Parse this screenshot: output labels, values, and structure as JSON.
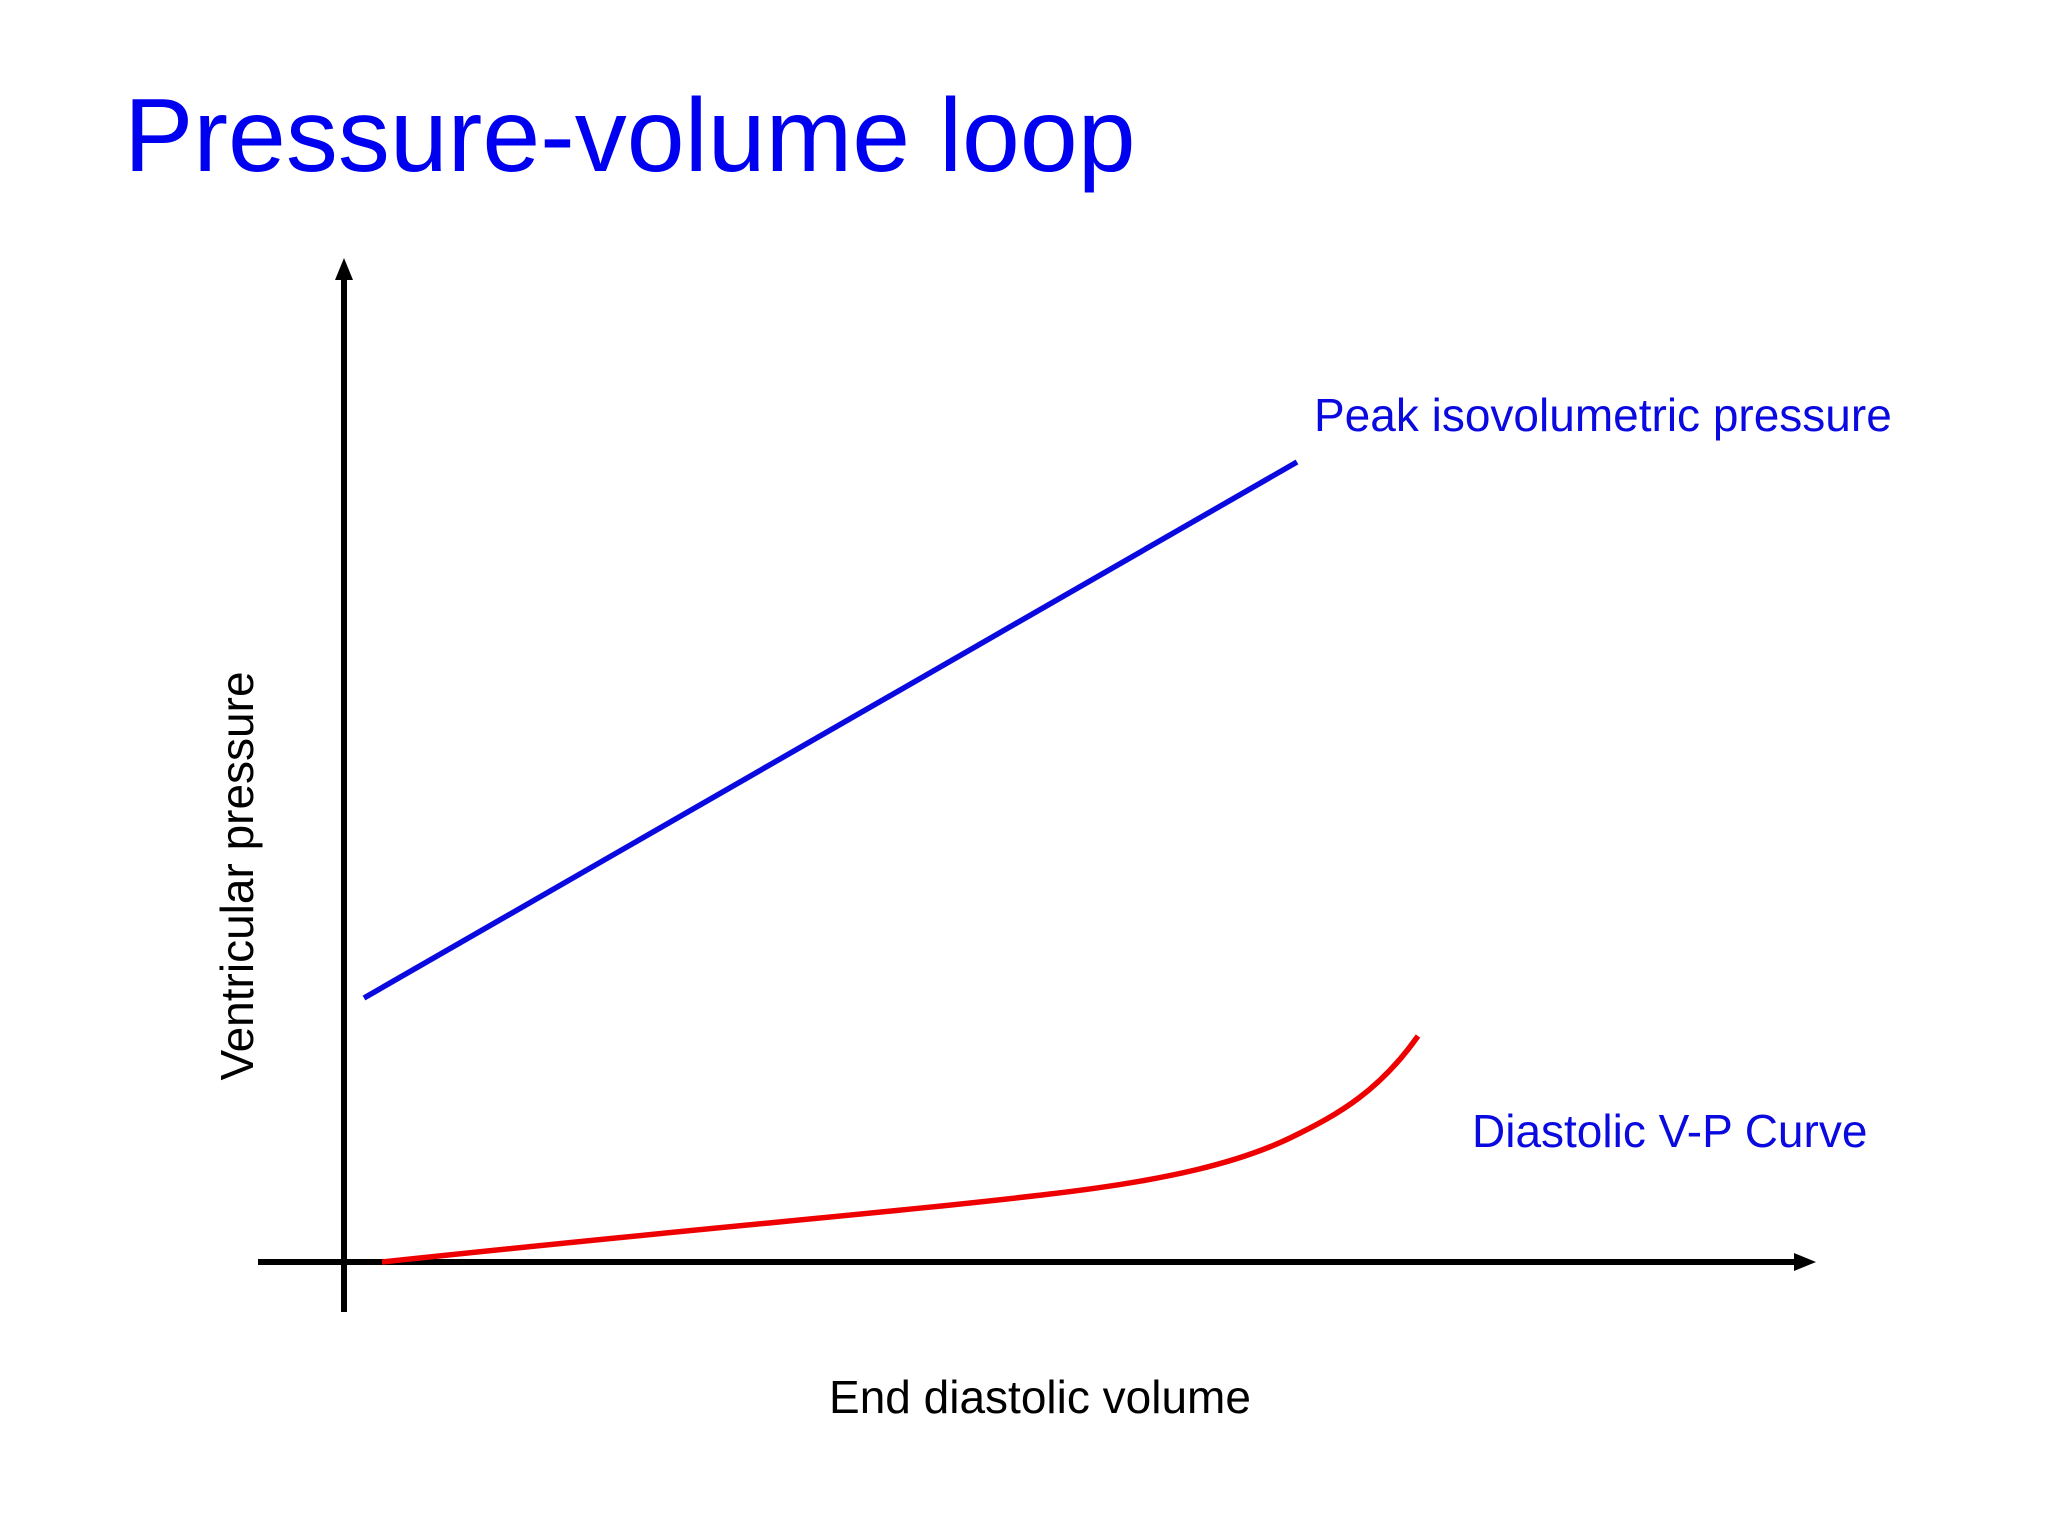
{
  "title": "Pressure-volume loop",
  "colors": {
    "title": "#0000f0",
    "axes": "#000000",
    "peak_line": "#0a0ae0",
    "diastolic_curve": "#ee0000",
    "label_blue": "#0a0ae0",
    "axis_label": "#000000"
  },
  "diagram": {
    "y_axis_label": "Ventricular pressure",
    "x_axis_label": "End diastolic volume",
    "curves": [
      {
        "id": "peak",
        "label": "Peak isovolumetric pressure",
        "shape": "straight line"
      },
      {
        "id": "diastolic",
        "label": "Diastolic V-P Curve",
        "shape": "flat then steeply rising"
      }
    ]
  }
}
